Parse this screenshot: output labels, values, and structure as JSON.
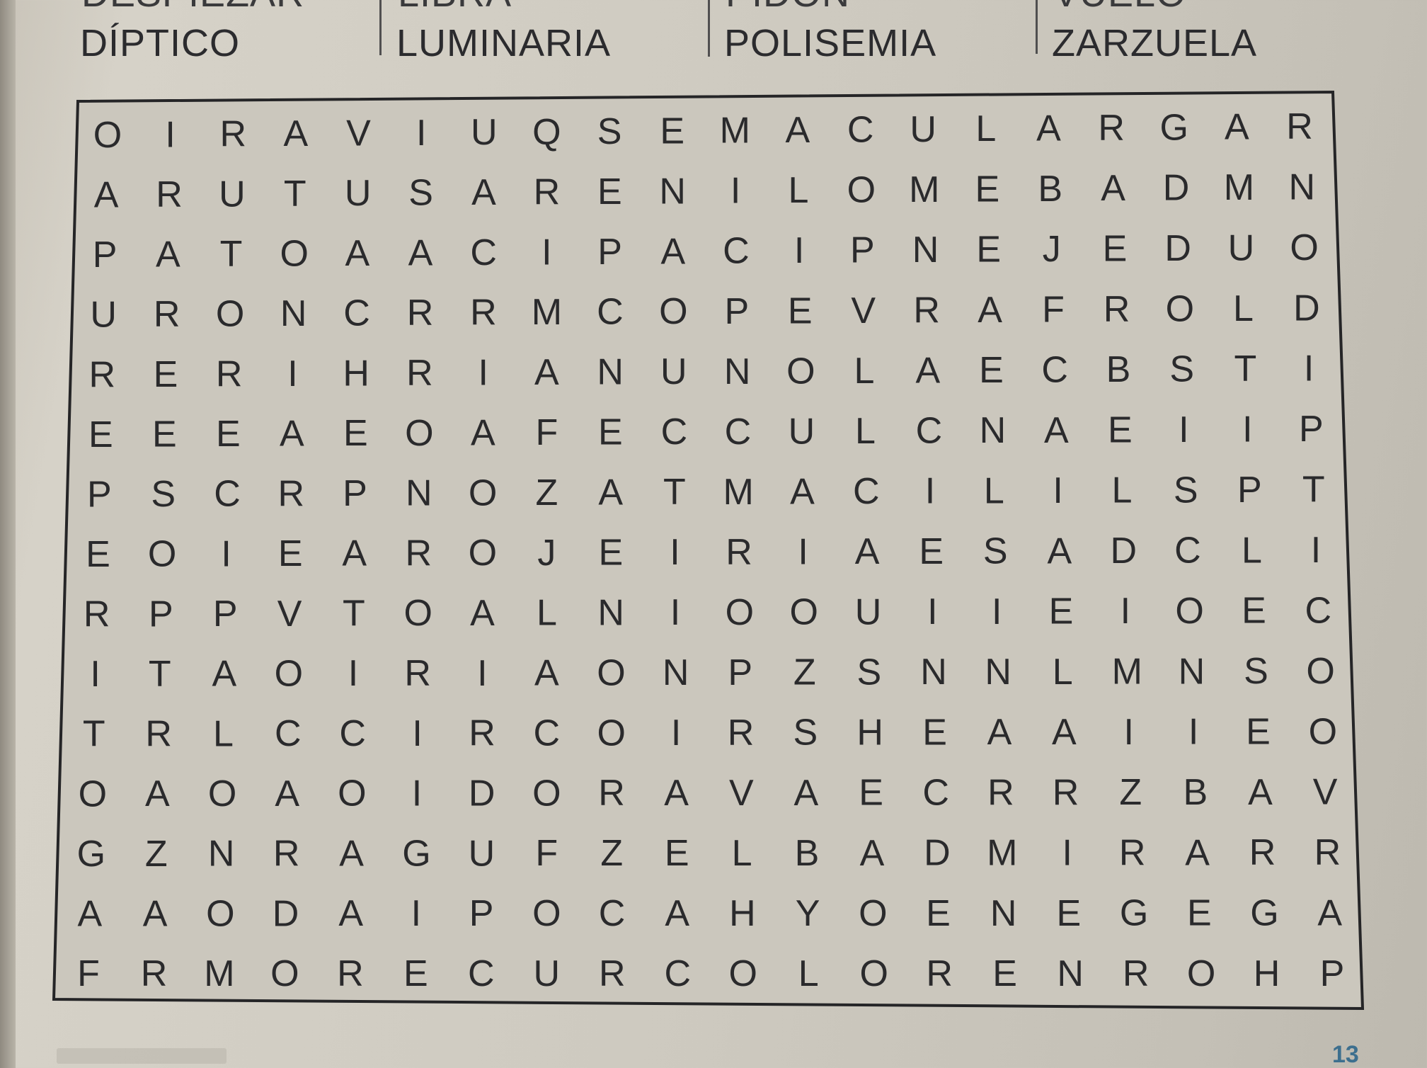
{
  "word_list": {
    "top_row_partial": [
      "DESPIEZAR",
      "LIBRA",
      "PIDÓN",
      "VUELO"
    ],
    "bottom_row": [
      "DÍPTICO",
      "LUMINARIA",
      "POLISEMIA",
      "ZARZUELA"
    ]
  },
  "grid": {
    "rows": [
      [
        "O",
        "I",
        "R",
        "A",
        "V",
        "I",
        "U",
        "Q",
        "S",
        "E",
        "M",
        "A",
        "C",
        "U",
        "L",
        "A",
        "R",
        "G",
        "A",
        "R"
      ],
      [
        "A",
        "R",
        "U",
        "T",
        "U",
        "S",
        "A",
        "R",
        "E",
        "N",
        "I",
        "L",
        "O",
        "M",
        "E",
        "B",
        "A",
        "D",
        "M",
        "N"
      ],
      [
        "P",
        "A",
        "T",
        "O",
        "A",
        "A",
        "C",
        "I",
        "P",
        "A",
        "C",
        "I",
        "P",
        "N",
        "E",
        "J",
        "E",
        "D",
        "U",
        "O"
      ],
      [
        "U",
        "R",
        "O",
        "N",
        "C",
        "R",
        "R",
        "M",
        "C",
        "O",
        "P",
        "E",
        "V",
        "R",
        "A",
        "F",
        "R",
        "O",
        "L",
        "D"
      ],
      [
        "R",
        "E",
        "R",
        "I",
        "H",
        "R",
        "I",
        "A",
        "N",
        "U",
        "N",
        "O",
        "L",
        "A",
        "E",
        "C",
        "B",
        "S",
        "T",
        "I"
      ],
      [
        "E",
        "E",
        "E",
        "A",
        "E",
        "O",
        "A",
        "F",
        "E",
        "C",
        "C",
        "U",
        "L",
        "C",
        "N",
        "A",
        "E",
        "I",
        "I",
        "P"
      ],
      [
        "P",
        "S",
        "C",
        "R",
        "P",
        "N",
        "O",
        "Z",
        "A",
        "T",
        "M",
        "A",
        "C",
        "I",
        "L",
        "I",
        "L",
        "S",
        "P",
        "T"
      ],
      [
        "E",
        "O",
        "I",
        "E",
        "A",
        "R",
        "O",
        "J",
        "E",
        "I",
        "R",
        "I",
        "A",
        "E",
        "S",
        "A",
        "D",
        "C",
        "L",
        "I"
      ],
      [
        "R",
        "P",
        "P",
        "V",
        "T",
        "O",
        "A",
        "L",
        "N",
        "I",
        "O",
        "O",
        "U",
        "I",
        "I",
        "E",
        "I",
        "O",
        "E",
        "C"
      ],
      [
        "I",
        "T",
        "A",
        "O",
        "I",
        "R",
        "I",
        "A",
        "O",
        "N",
        "P",
        "Z",
        "S",
        "N",
        "N",
        "L",
        "M",
        "N",
        "S",
        "O"
      ],
      [
        "T",
        "R",
        "L",
        "C",
        "C",
        "I",
        "R",
        "C",
        "O",
        "I",
        "R",
        "S",
        "H",
        "E",
        "A",
        "A",
        "I",
        "I",
        "E",
        "O"
      ],
      [
        "O",
        "A",
        "O",
        "A",
        "O",
        "I",
        "D",
        "O",
        "R",
        "A",
        "V",
        "A",
        "E",
        "C",
        "R",
        "R",
        "Z",
        "B",
        "A",
        "V"
      ],
      [
        "G",
        "Z",
        "N",
        "R",
        "A",
        "G",
        "U",
        "F",
        "Z",
        "E",
        "L",
        "B",
        "A",
        "D",
        "M",
        "I",
        "R",
        "A",
        "R",
        "R"
      ],
      [
        "A",
        "A",
        "O",
        "D",
        "A",
        "I",
        "P",
        "O",
        "C",
        "A",
        "H",
        "Y",
        "O",
        "E",
        "N",
        "E",
        "G",
        "E",
        "G",
        "A"
      ],
      [
        "F",
        "R",
        "M",
        "O",
        "R",
        "E",
        "C",
        "U",
        "R",
        "C",
        "O",
        "L",
        "O",
        "R",
        "E",
        "N",
        "R",
        "O",
        "H",
        "P"
      ]
    ]
  },
  "footer": {
    "page_number": "13"
  },
  "colors": {
    "paper": "#cdc9bf",
    "ink": "#2a2a2c",
    "page_number": "#3d6f8e"
  }
}
